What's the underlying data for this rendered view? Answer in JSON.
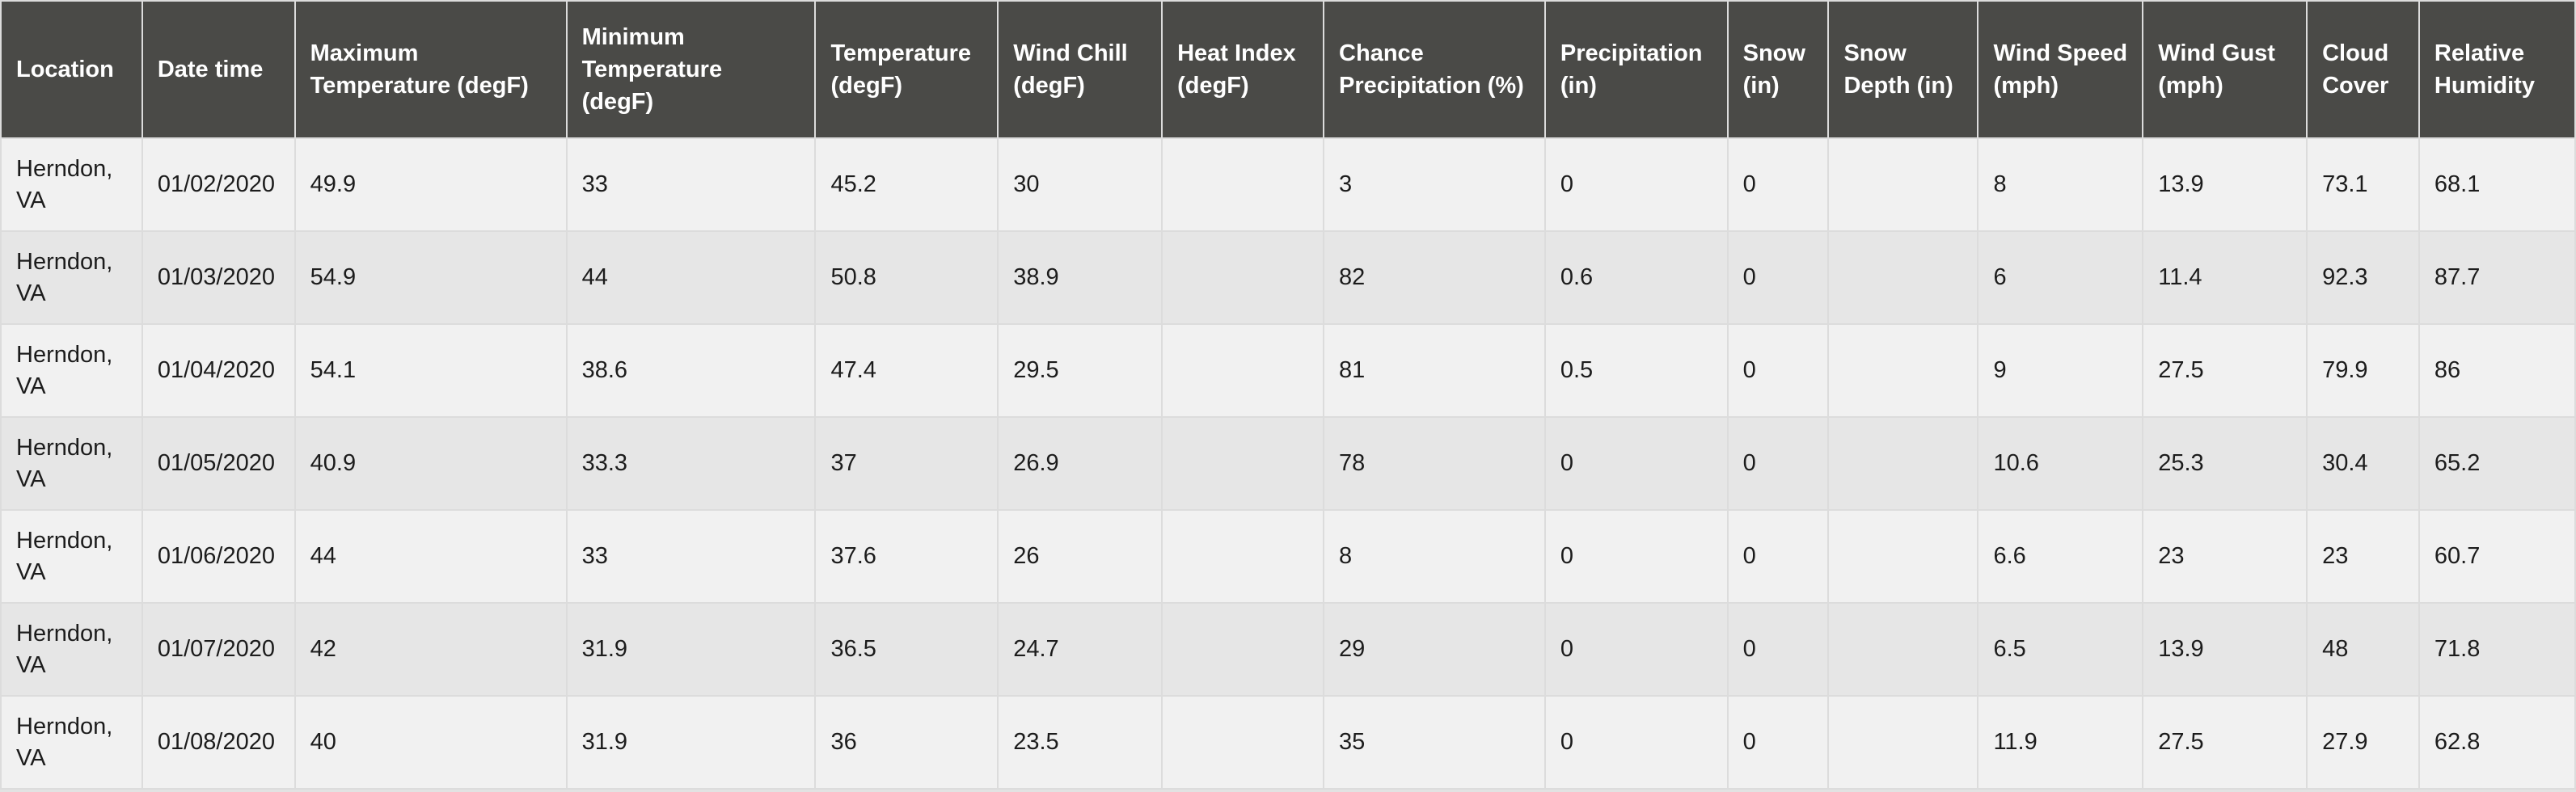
{
  "colors": {
    "header_bg": "#4a4a47",
    "header_text": "#ffffff",
    "row_odd": "#f1f1f1",
    "row_even": "#e6e6e6",
    "border": "#dcdcdc"
  },
  "table": {
    "columns": [
      "Location",
      "Date time",
      "Maximum Temperature (degF)",
      "Minimum Temperature (degF)",
      "Temperature (degF)",
      "Wind Chill (degF)",
      "Heat Index (degF)",
      "Chance Precipitation (%)",
      "Precipitation (in)",
      "Snow (in)",
      "Snow Depth (in)",
      "Wind Speed (mph)",
      "Wind Gust (mph)",
      "Cloud Cover",
      "Relative Humidity"
    ],
    "rows": [
      [
        "Herndon, VA",
        "01/02/2020",
        "49.9",
        "33",
        "45.2",
        "30",
        "",
        "3",
        "0",
        "0",
        "",
        "8",
        "13.9",
        "73.1",
        "68.1"
      ],
      [
        "Herndon, VA",
        "01/03/2020",
        "54.9",
        "44",
        "50.8",
        "38.9",
        "",
        "82",
        "0.6",
        "0",
        "",
        "6",
        "11.4",
        "92.3",
        "87.7"
      ],
      [
        "Herndon, VA",
        "01/04/2020",
        "54.1",
        "38.6",
        "47.4",
        "29.5",
        "",
        "81",
        "0.5",
        "0",
        "",
        "9",
        "27.5",
        "79.9",
        "86"
      ],
      [
        "Herndon, VA",
        "01/05/2020",
        "40.9",
        "33.3",
        "37",
        "26.9",
        "",
        "78",
        "0",
        "0",
        "",
        "10.6",
        "25.3",
        "30.4",
        "65.2"
      ],
      [
        "Herndon, VA",
        "01/06/2020",
        "44",
        "33",
        "37.6",
        "26",
        "",
        "8",
        "0",
        "0",
        "",
        "6.6",
        "23",
        "23",
        "60.7"
      ],
      [
        "Herndon, VA",
        "01/07/2020",
        "42",
        "31.9",
        "36.5",
        "24.7",
        "",
        "29",
        "0",
        "0",
        "",
        "6.5",
        "13.9",
        "48",
        "71.8"
      ],
      [
        "Herndon, VA",
        "01/08/2020",
        "40",
        "31.9",
        "36",
        "23.5",
        "",
        "35",
        "0",
        "0",
        "",
        "11.9",
        "27.5",
        "27.9",
        "62.8"
      ]
    ]
  }
}
